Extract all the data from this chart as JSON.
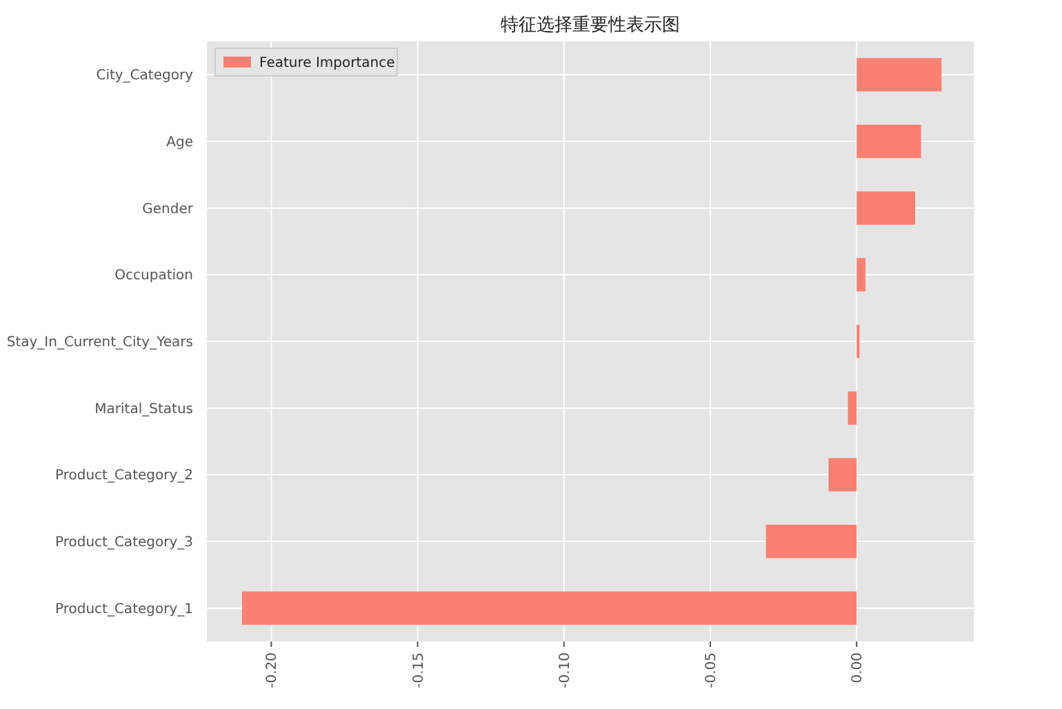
{
  "chart_data": {
    "type": "bar",
    "orientation": "horizontal",
    "title": "特征选择重要性表示图",
    "categories": [
      "City_Category",
      "Age",
      "Gender",
      "Occupation",
      "Stay_In_Current_City_Years",
      "Marital_Status",
      "Product_Category_2",
      "Product_Category_3",
      "Product_Category_1"
    ],
    "series": [
      {
        "name": "Feature Importance",
        "color": "#fa8072",
        "values": [
          0.029,
          0.022,
          0.02,
          0.003,
          0.001,
          -0.003,
          -0.0096,
          -0.031,
          -0.21
        ]
      }
    ],
    "xlim": [
      -0.222,
      0.04
    ],
    "xticks": [
      {
        "value": -0.2,
        "label": "-0.20"
      },
      {
        "value": -0.15,
        "label": "-0.15"
      },
      {
        "value": -0.1,
        "label": "-0.10"
      },
      {
        "value": -0.05,
        "label": "-0.05"
      },
      {
        "value": 0,
        "label": "0.00"
      }
    ],
    "grid": true,
    "legend": "top left"
  }
}
